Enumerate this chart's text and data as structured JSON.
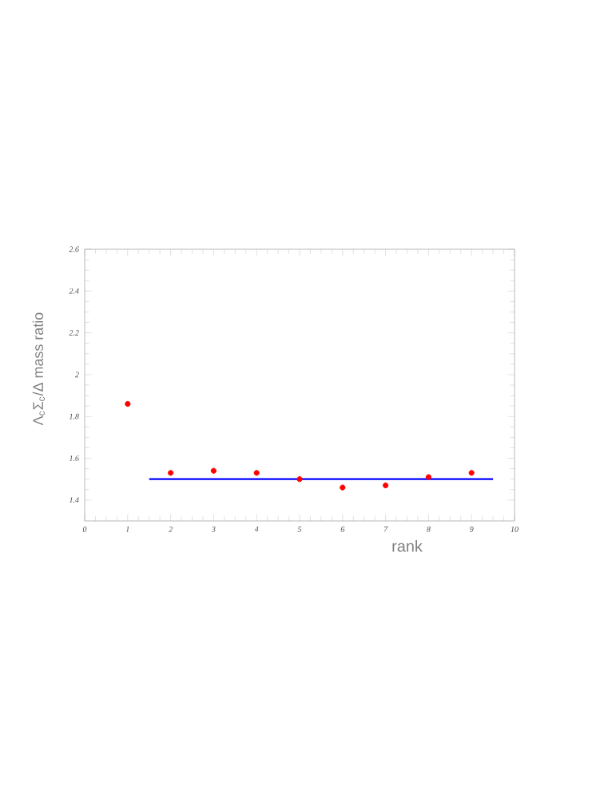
{
  "chart_data": {
    "type": "scatter",
    "xlabel": "rank",
    "ylabel": "Λ$_{c}$Σ$_{c}$/Δ   mass ratio",
    "xlim": [
      0,
      10
    ],
    "ylim": [
      1.3,
      2.6
    ],
    "xticks": [
      0,
      1,
      2,
      3,
      4,
      5,
      6,
      7,
      8,
      9,
      10
    ],
    "yticks": [
      1.4,
      1.6,
      1.8,
      2,
      2.2,
      2.4,
      2.6
    ],
    "grid": false,
    "x": [
      1,
      2,
      3,
      4,
      5,
      6,
      7,
      8,
      9
    ],
    "series": [
      {
        "color": "#ff0000",
        "marker": "circle",
        "values": [
          1.86,
          1.53,
          1.54,
          1.53,
          1.5,
          1.46,
          1.47,
          1.51,
          1.53
        ]
      },
      {
        "type": "line",
        "color": "#0000ff",
        "x": [
          1.5,
          9.5
        ],
        "values": [
          1.5,
          1.5
        ],
        "marker": "none",
        "line_style": "solid"
      }
    ]
  }
}
